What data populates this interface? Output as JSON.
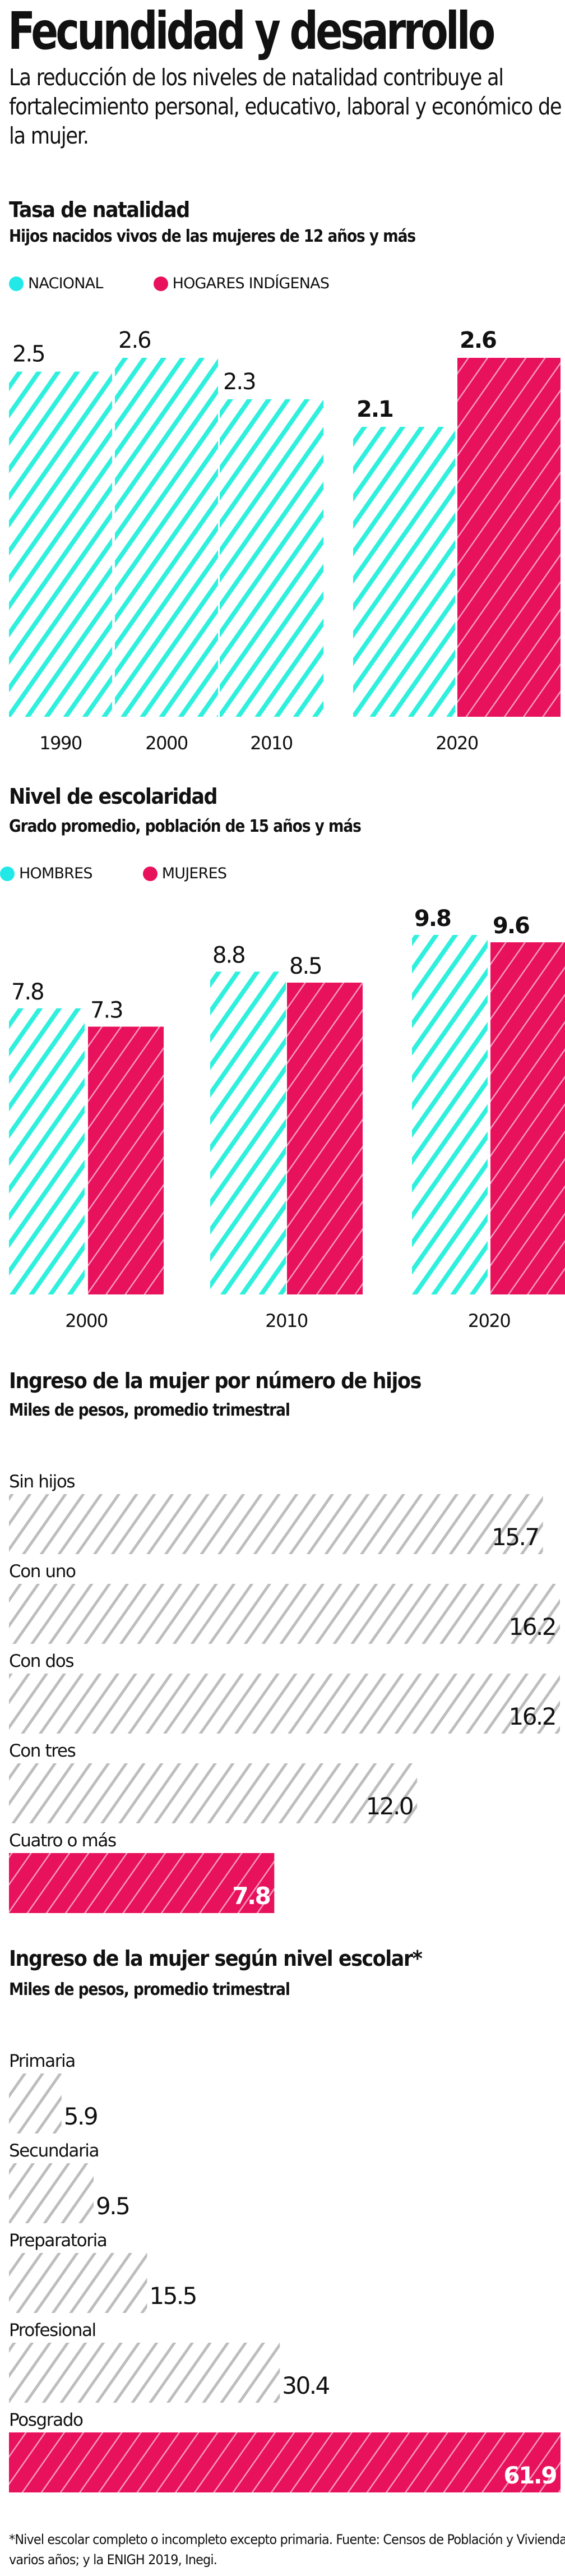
{
  "header": {
    "title": "Fecundidad y desarrollo",
    "intro": "La reducción de los niveles de natalidad contribuye al fortalecimiento personal, educativo, laboral y económico de la mujer."
  },
  "colors": {
    "cyan": "#2EF0DD",
    "pink": "#E8115B",
    "pink_hatch": "#F59AC0",
    "gray_hatch": "#BDBDBD",
    "text": "#111111"
  },
  "legend_dots": {
    "nacional": "#22E8E8",
    "indigenas": "#E8115B"
  },
  "chart_data": [
    {
      "id": "natalidad",
      "type": "bar",
      "title": "Tasa de natalidad",
      "subtitle": "Hijos nacidos vivos de las mujeres de 12 años y más",
      "legend": [
        "NACIONAL",
        "HOGARES INDÍGENAS"
      ],
      "categories": [
        "1990",
        "2000",
        "2010",
        "2020"
      ],
      "series": [
        {
          "name": "NACIONAL",
          "values": [
            2.5,
            2.6,
            2.3,
            2.1
          ],
          "labels": [
            "2.5",
            "2.6",
            "2.3",
            "2.1"
          ]
        },
        {
          "name": "HOGARES INDÍGENAS",
          "values": [
            null,
            null,
            null,
            2.6
          ],
          "labels": [
            "",
            "",
            "",
            "2.6"
          ]
        }
      ],
      "bold_labels_category": "2020",
      "grid": false
    },
    {
      "id": "escolaridad",
      "type": "bar",
      "title": "Nivel de escolaridad",
      "subtitle": "Grado promedio, población de 15 años y más",
      "legend": [
        "HOMBRES",
        "MUJERES"
      ],
      "categories": [
        "2000",
        "2010",
        "2020"
      ],
      "series": [
        {
          "name": "HOMBRES",
          "values": [
            7.8,
            8.8,
            9.8
          ],
          "labels": [
            "7.8",
            "8.8",
            "9.8"
          ]
        },
        {
          "name": "MUJERES",
          "values": [
            7.3,
            8.5,
            9.6
          ],
          "labels": [
            "7.3",
            "8.5",
            "9.6"
          ]
        }
      ],
      "bold_labels_category": "2020",
      "grid": false
    },
    {
      "id": "ingreso_hijos",
      "type": "bar",
      "orientation": "horizontal",
      "title": "Ingreso de la mujer por número de hijos",
      "subtitle": "Miles de pesos, promedio trimestral",
      "categories": [
        "Sin hijos",
        "Con uno",
        "Con dos",
        "Con tres",
        "Cuatro o más"
      ],
      "values": [
        15.7,
        16.2,
        16.2,
        12.0,
        7.8
      ],
      "labels": [
        "15.7",
        "16.2",
        "16.2",
        "12.0",
        "7.8"
      ],
      "highlight": "Cuatro o más",
      "xlim": [
        0,
        16.2
      ]
    },
    {
      "id": "ingreso_escolar",
      "type": "bar",
      "orientation": "horizontal",
      "title": "Ingreso de la mujer según nivel escolar*",
      "subtitle": "Miles de pesos, promedio trimestral",
      "categories": [
        "Primaria",
        "Secundaria",
        "Preparatoria",
        "Profesional",
        "Posgrado"
      ],
      "values": [
        5.9,
        9.5,
        15.5,
        30.4,
        61.9
      ],
      "labels": [
        "5.9",
        "9.5",
        "15.5",
        "30.4",
        "61.9"
      ],
      "highlight": "Posgrado",
      "xlim": [
        0,
        61.9
      ]
    }
  ],
  "footnote": "*Nivel escolar completo o incompleto excepto primaria. Fuente: Censos de Población y Vivienda, varios años; y la ENIGH 2019, Inegi."
}
